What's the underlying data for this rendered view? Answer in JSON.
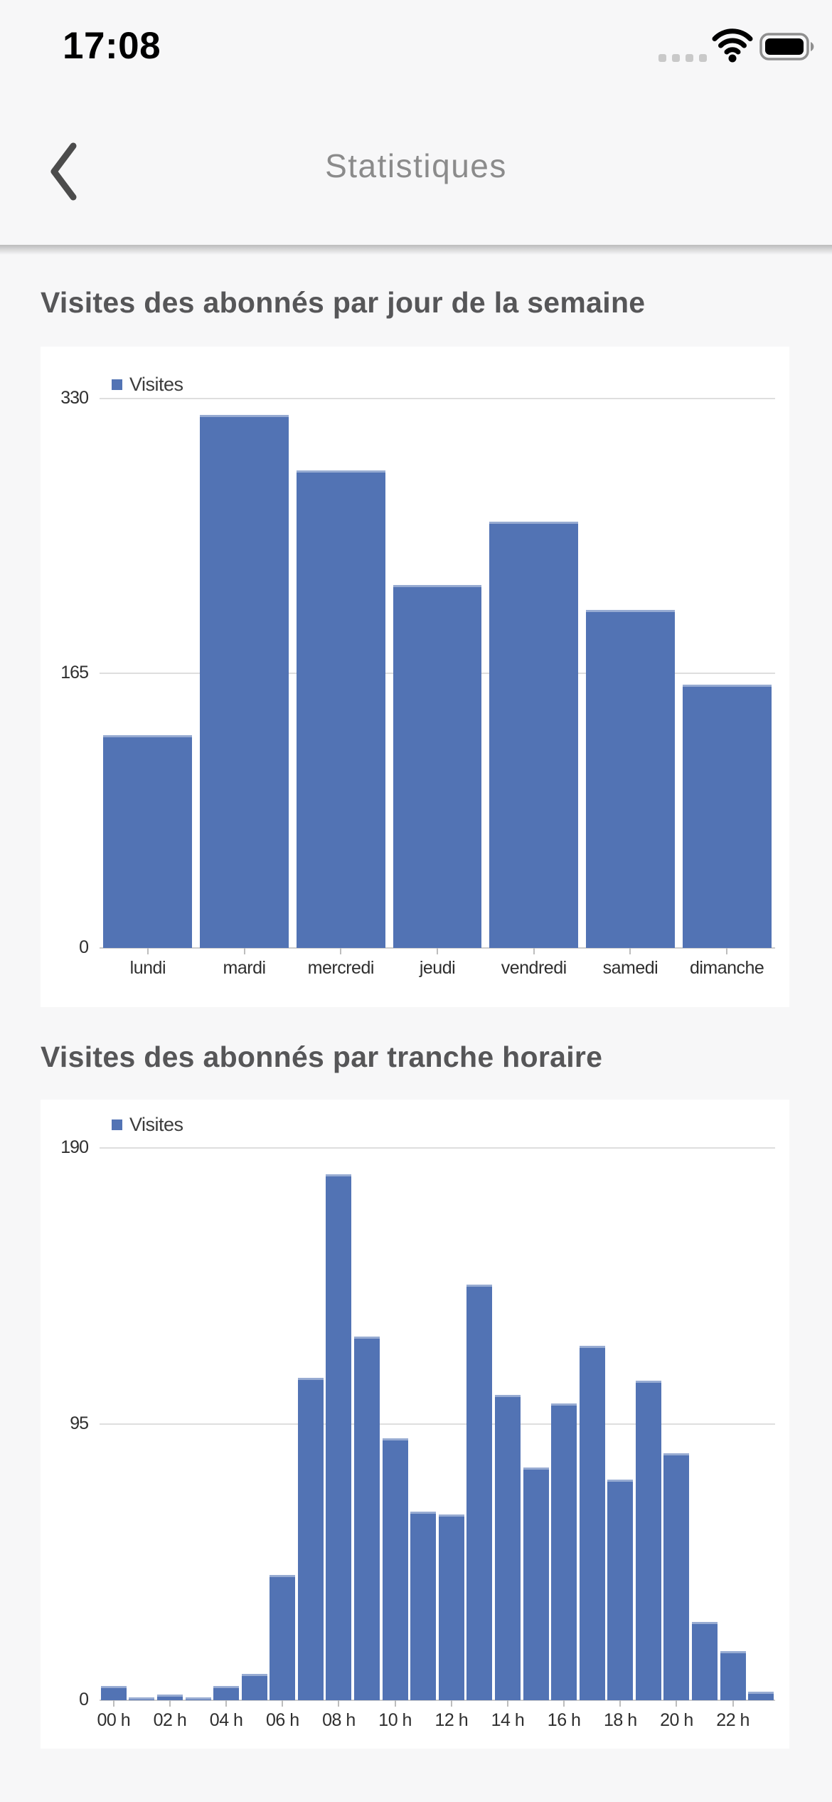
{
  "status_bar": {
    "time": "17:08"
  },
  "header": {
    "title": "Statistiques",
    "back_icon": "chevron-left"
  },
  "colors": {
    "bar": "#5273b4",
    "grid": "#dedede",
    "axis_line": "#cdcdcd",
    "axis_text": "#2f2f2f",
    "card_bg": "#ffffff",
    "page_bg": "#f7f7f8",
    "section_title": "#565658",
    "header_title": "#8b8b8b",
    "time_color": "#000000"
  },
  "chart_data": [
    {
      "type": "bar",
      "title": "Visites des abonnés par jour de la semaine",
      "legend": [
        "Visites"
      ],
      "categories": [
        "lundi",
        "mardi",
        "mercredi",
        "jeudi",
        "vendredi",
        "samedi",
        "dimanche"
      ],
      "values": [
        128,
        320,
        287,
        218,
        256,
        203,
        158
      ],
      "ylim": [
        0,
        330
      ],
      "yticks": [
        0,
        165,
        330
      ],
      "xlabel": "",
      "ylabel": "",
      "grid": true,
      "legend_position": "top-left"
    },
    {
      "type": "bar",
      "title": "Visites des abonnés par tranche horaire",
      "legend": [
        "Visites"
      ],
      "categories": [
        "00 h",
        "01 h",
        "02 h",
        "03 h",
        "04 h",
        "05 h",
        "06 h",
        "07 h",
        "08 h",
        "09 h",
        "10 h",
        "11 h",
        "12 h",
        "13 h",
        "14 h",
        "15 h",
        "16 h",
        "17 h",
        "18 h",
        "19 h",
        "20 h",
        "21 h",
        "22 h",
        "23 h"
      ],
      "x_tick_labels": [
        "00 h",
        "02 h",
        "04 h",
        "06 h",
        "08 h",
        "10 h",
        "12 h",
        "14 h",
        "16 h",
        "18 h",
        "20 h",
        "22 h"
      ],
      "values": [
        5,
        1,
        2,
        1,
        5,
        9,
        43,
        111,
        181,
        125,
        90,
        65,
        64,
        143,
        105,
        80,
        102,
        122,
        76,
        110,
        85,
        27,
        17,
        3
      ],
      "ylim": [
        0,
        190
      ],
      "yticks": [
        0,
        95,
        190
      ],
      "xlabel": "",
      "ylabel": "",
      "grid": true,
      "legend_position": "top-left"
    }
  ]
}
